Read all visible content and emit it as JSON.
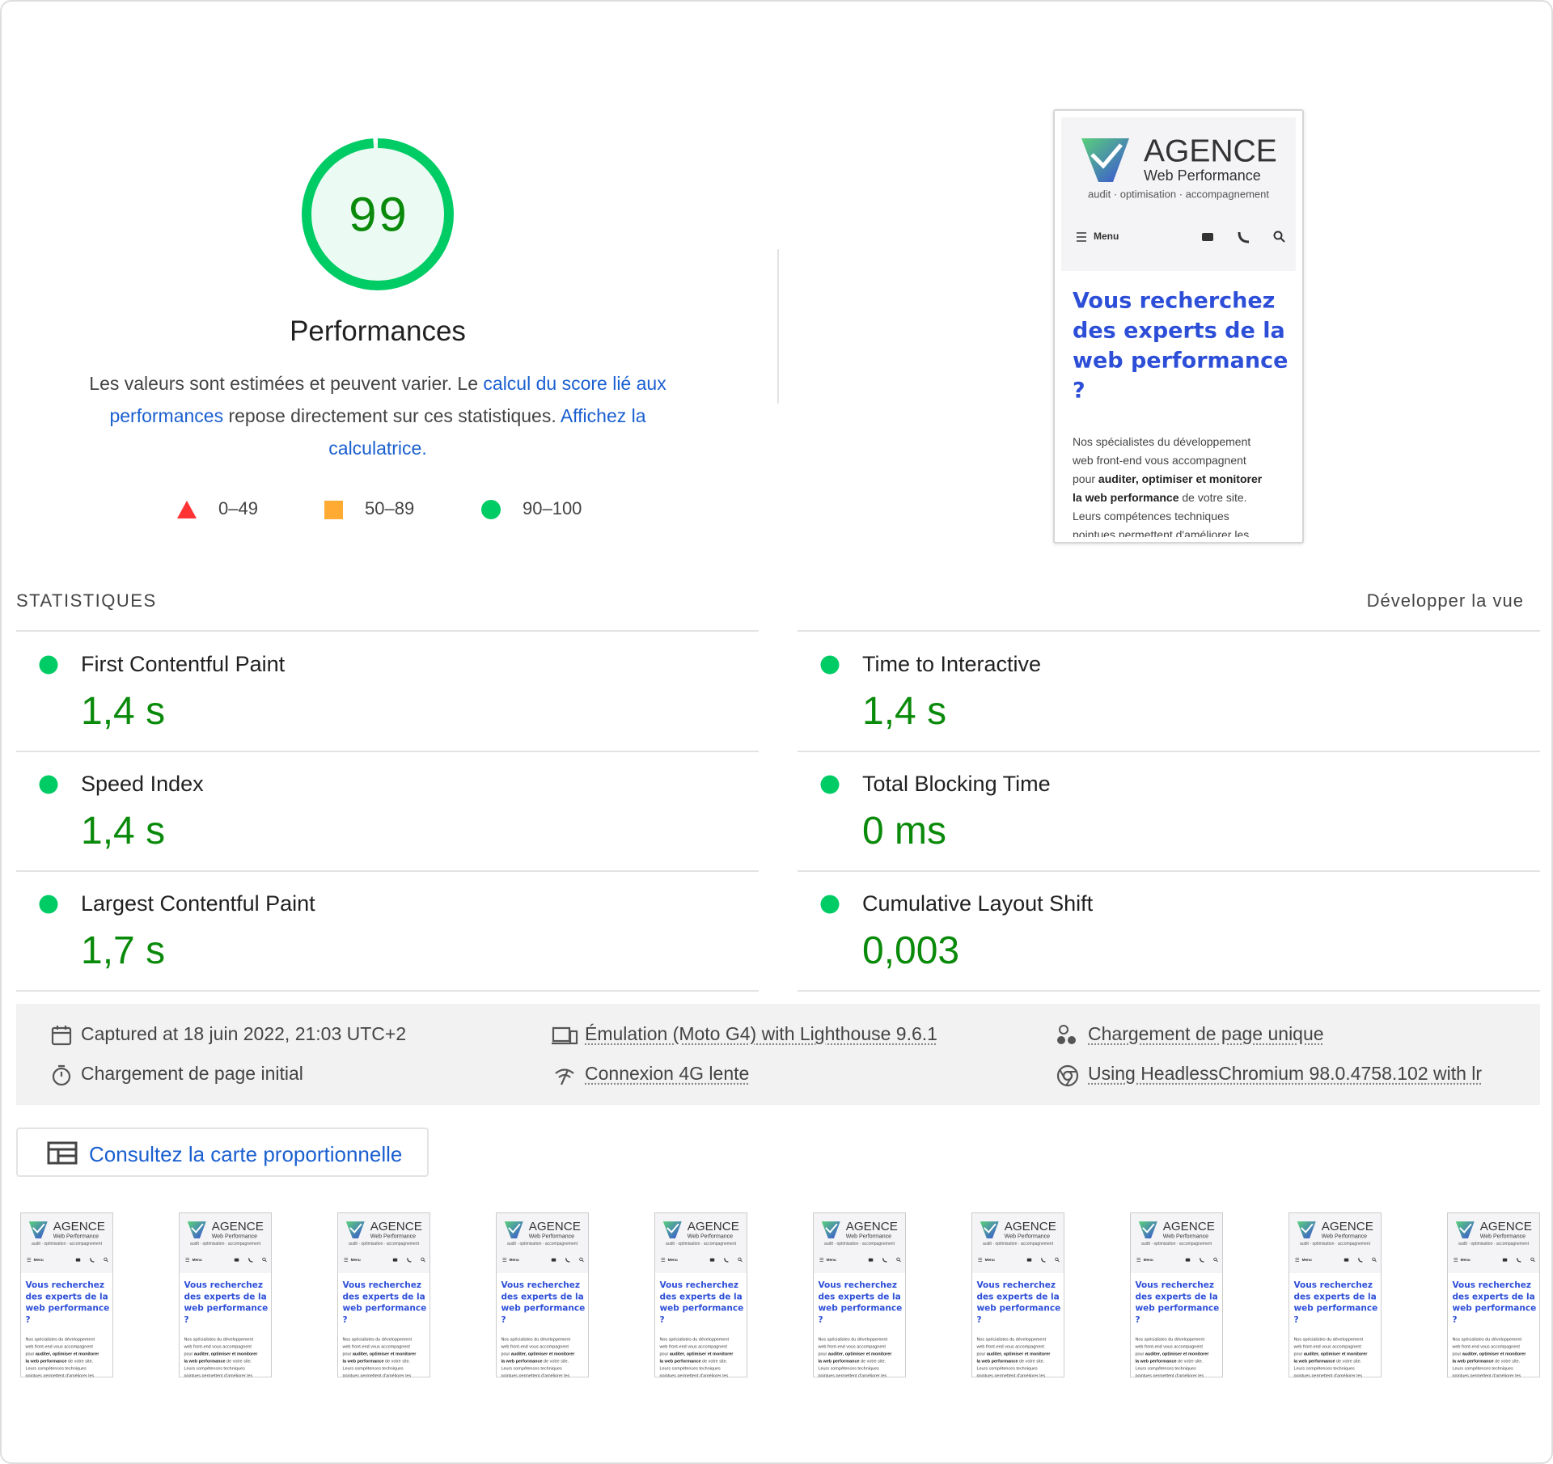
{
  "gauge": {
    "score": 99,
    "title": "Performances"
  },
  "description": {
    "before": "Les valeurs sont estimées et peuvent varier. Le ",
    "link1": "calcul du score lié aux performances",
    "middle": " repose directement sur ces statistiques. ",
    "link2": "Affichez la calculatrice."
  },
  "legend": [
    "0–49",
    "50–89",
    "90–100"
  ],
  "screenshot": {
    "brand": "AGENCE",
    "brand_sub": "Web Performance",
    "tagline": "audit · optimisation · accompagnement",
    "menu": "Menu",
    "heading": [
      "Vous recherchez",
      "des experts de la",
      "web performance",
      "?"
    ],
    "paragraph": [
      [
        "Nos spécialistes du développement"
      ],
      [
        "web front-end vous accompagnent"
      ],
      [
        "pour ",
        "auditer, optimiser et monitorer"
      ],
      [
        "la web performance",
        " de votre site."
      ],
      [
        "Leurs compétences techniques"
      ],
      [
        "pointues permettent d'améliorer les"
      ]
    ]
  },
  "metrics": {
    "header": "STATISTIQUES",
    "toggle": "Développer la vue",
    "items": [
      {
        "label": "First Contentful Paint",
        "value": "1,4 s"
      },
      {
        "label": "Time to Interactive",
        "value": "1,4 s"
      },
      {
        "label": "Speed Index",
        "value": "1,4 s"
      },
      {
        "label": "Total Blocking Time",
        "value": "0 ms"
      },
      {
        "label": "Largest Contentful Paint",
        "value": "1,7 s"
      },
      {
        "label": "Cumulative Layout Shift",
        "value": "0,003"
      }
    ]
  },
  "environment": [
    "Captured at 18 juin 2022, 21:03 UTC+2",
    "Émulation (Moto G4) with Lighthouse 9.6.1",
    "Chargement de page unique",
    "Chargement de page initial",
    "Connexion 4G lente",
    "Using HeadlessChromium 98.0.4758.102 with lr"
  ],
  "treemap_button": "Consultez la carte proportionnelle"
}
